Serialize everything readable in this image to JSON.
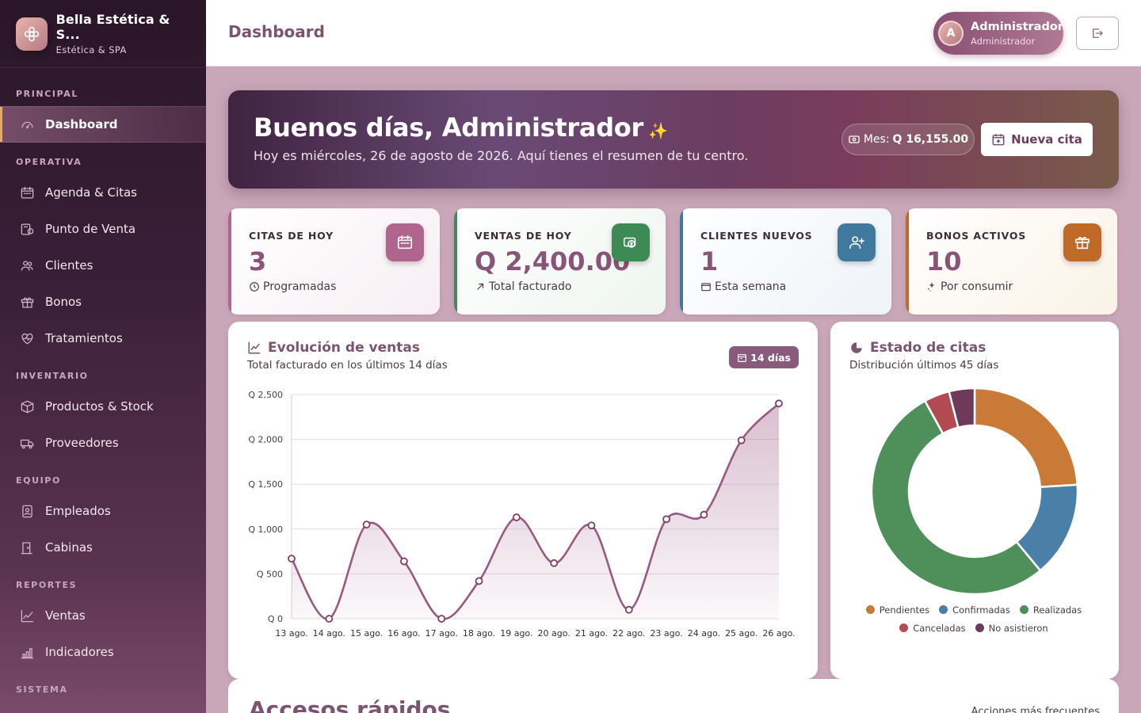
{
  "brand": {
    "name": "Bella Estética & S...",
    "subtitle": "Estética & SPA"
  },
  "sidebar": {
    "sections": [
      {
        "label": "PRINCIPAL",
        "items": [
          {
            "label": "Dashboard",
            "icon": "gauge-icon",
            "active": true
          }
        ]
      },
      {
        "label": "OPERATIVA",
        "items": [
          {
            "label": "Agenda & Citas",
            "icon": "calendar-icon"
          },
          {
            "label": "Punto de Venta",
            "icon": "cash-register-icon"
          },
          {
            "label": "Clientes",
            "icon": "users-icon"
          },
          {
            "label": "Bonos",
            "icon": "gift-icon"
          },
          {
            "label": "Tratamientos",
            "icon": "heart-pulse-icon"
          }
        ]
      },
      {
        "label": "INVENTARIO",
        "items": [
          {
            "label": "Productos & Stock",
            "icon": "box-icon"
          },
          {
            "label": "Proveedores",
            "icon": "truck-icon"
          }
        ]
      },
      {
        "label": "EQUIPO",
        "items": [
          {
            "label": "Empleados",
            "icon": "id-badge-icon"
          },
          {
            "label": "Cabinas",
            "icon": "door-icon"
          }
        ]
      },
      {
        "label": "REPORTES",
        "items": [
          {
            "label": "Ventas",
            "icon": "line-chart-icon"
          },
          {
            "label": "Indicadores",
            "icon": "bar-chart-icon"
          }
        ]
      },
      {
        "label": "SISTEMA",
        "items": []
      }
    ]
  },
  "header": {
    "title": "Dashboard",
    "user_name": "Administrador",
    "user_role": "Administrador",
    "avatar_initial": "A"
  },
  "hero": {
    "greeting": "Buenos días, Administrador",
    "subtitle": "Hoy es miércoles, 26 de agosto de 2026. Aquí tienes el resumen de tu centro.",
    "month_label": "Mes:",
    "month_value": "Q 16,155.00",
    "new_button": "Nueva cita"
  },
  "stats": [
    {
      "label": "CITAS DE HOY",
      "value": "3",
      "foot": "Programadas",
      "color": "#b0658e",
      "bg": "#f7eef3",
      "icon": "calendar-icon"
    },
    {
      "label": "VENTAS DE HOY",
      "value": "Q 2,400.00",
      "foot": "Total facturado",
      "color": "#3e8a55",
      "bg": "#eef5ef",
      "icon": "money-icon"
    },
    {
      "label": "CLIENTES NUEVOS",
      "value": "1",
      "foot": "Esta semana",
      "color": "#3f7a9e",
      "bg": "#eef3f8",
      "icon": "user-plus-icon"
    },
    {
      "label": "BONOS ACTIVOS",
      "value": "10",
      "foot": "Por consumir",
      "color": "#c06a28",
      "bg": "#faf2e6",
      "icon": "gift-icon"
    }
  ],
  "sales_panel": {
    "title": "Evolución de ventas",
    "subtitle": "Total facturado en los últimos 14 días",
    "badge": "14 días"
  },
  "status_panel": {
    "title": "Estado de citas",
    "subtitle": "Distribución últimos 45 días"
  },
  "quick_access": {
    "title": "Accesos rápidos",
    "subtitle": "Acciones más frecuentes"
  },
  "chart_data": [
    {
      "type": "area",
      "categories": [
        "13 ago.",
        "14 ago.",
        "15 ago.",
        "16 ago.",
        "17 ago.",
        "18 ago.",
        "19 ago.",
        "20 ago.",
        "21 ago.",
        "22 ago.",
        "23 ago.",
        "24 ago.",
        "25 ago.",
        "26 ago."
      ],
      "values": [
        670,
        0,
        1050,
        640,
        0,
        420,
        1130,
        620,
        1040,
        100,
        1110,
        1160,
        1990,
        2400
      ],
      "y_ticks": [
        "Q 0",
        "Q 500",
        "Q 1,000",
        "Q 1,500",
        "Q 2,000",
        "Q 2,500"
      ],
      "ylim": [
        0,
        2500
      ],
      "color": "#9a5883",
      "grid": true
    },
    {
      "type": "pie",
      "labels": [
        "Pendientes",
        "Confirmadas",
        "Realizadas",
        "Canceladas",
        "No asistieron"
      ],
      "values": [
        24,
        15,
        53,
        4,
        4
      ],
      "colors": [
        "#c97a36",
        "#4a7fa8",
        "#4f8f5a",
        "#b24a52",
        "#6e3a5a"
      ]
    }
  ]
}
